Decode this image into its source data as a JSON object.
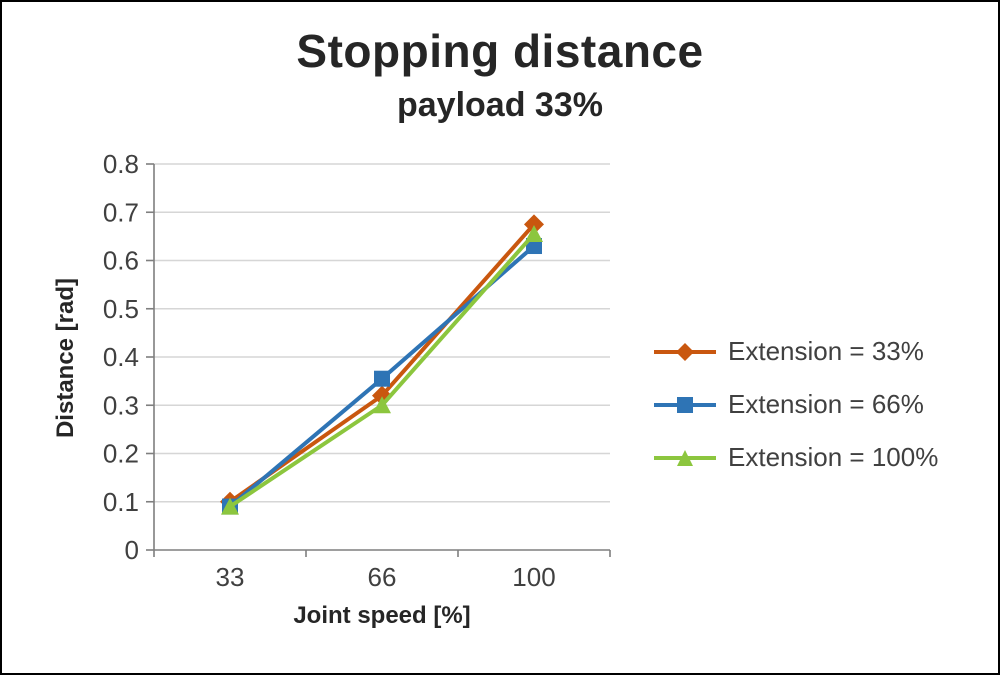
{
  "chart_data": {
    "type": "line",
    "title": "Stopping distance",
    "subtitle": "payload 33%",
    "xlabel": "Joint speed [%]",
    "ylabel": "Distance [rad]",
    "categories": [
      "33",
      "66",
      "100"
    ],
    "ylim": [
      0,
      0.8
    ],
    "ytick_step": 0.1,
    "grid": true,
    "legend_position": "right",
    "colors": {
      "grid": "#d6d6d6",
      "axis": "#7f7f7f",
      "text": "#404040"
    },
    "series": [
      {
        "name": "Extension = 33%",
        "marker": "diamond",
        "color": "#c9570f",
        "values": [
          0.1,
          0.32,
          0.675
        ]
      },
      {
        "name": "Extension = 66%",
        "marker": "square",
        "color": "#2e74b5",
        "values": [
          0.09,
          0.355,
          0.63
        ]
      },
      {
        "name": "Extension = 100%",
        "marker": "triangle",
        "color": "#8cc63e",
        "values": [
          0.09,
          0.3,
          0.655
        ]
      }
    ]
  }
}
